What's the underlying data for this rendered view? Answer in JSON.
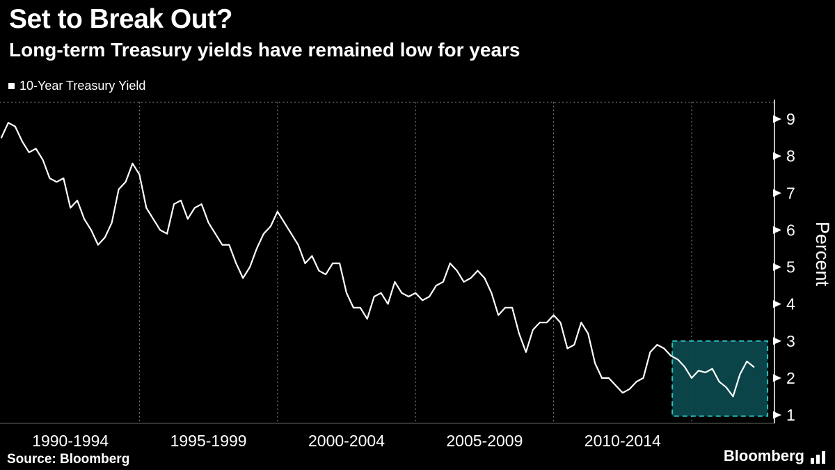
{
  "header": {
    "title": "Set to Break Out?",
    "subtitle": "Long-term Treasury yields have remained low for years"
  },
  "legend": {
    "label": "10-Year Treasury Yield",
    "marker_color": "#ffffff"
  },
  "footer": {
    "source": "Source: Bloomberg",
    "brand": "Bloomberg"
  },
  "colors": {
    "background": "#000000",
    "text": "#ffffff",
    "line": "#ffffff",
    "grid": "#909090",
    "axis": "#ffffff",
    "highlight_fill": "#0b4a4e",
    "highlight_border": "#2cc0c2"
  },
  "chart_data": {
    "type": "line",
    "title": "Set to Break Out?",
    "subtitle": "Long-term Treasury yields have remained low for years",
    "xlabel": "",
    "ylabel": "Percent",
    "xlim": [
      1990.0,
      2018.0
    ],
    "ylim": [
      1,
      9
    ],
    "yticks": [
      1,
      2,
      3,
      4,
      5,
      6,
      7,
      8,
      9
    ],
    "grid_x": [
      1995,
      2000,
      2005,
      2010,
      2015
    ],
    "xtick_labels": [
      "1990-1994",
      "1995-1999",
      "2000-2004",
      "2005-2009",
      "2010-2014"
    ],
    "xtick_centers": [
      1992.5,
      1997.5,
      2002.5,
      2007.5,
      2012.5
    ],
    "legend_position": "top-left",
    "grid": "vertical-dotted",
    "series": [
      {
        "name": "10-Year Treasury Yield",
        "color": "#ffffff",
        "x_start": 1990.0,
        "x_step": 0.25,
        "values": [
          8.5,
          8.9,
          8.8,
          8.4,
          8.1,
          8.2,
          7.9,
          7.4,
          7.3,
          7.4,
          6.6,
          6.8,
          6.3,
          6.0,
          5.6,
          5.8,
          6.2,
          7.1,
          7.3,
          7.8,
          7.5,
          6.6,
          6.3,
          6.0,
          5.9,
          6.7,
          6.8,
          6.3,
          6.6,
          6.7,
          6.2,
          5.9,
          5.6,
          5.6,
          5.1,
          4.7,
          5.0,
          5.5,
          5.9,
          6.1,
          6.5,
          6.2,
          5.9,
          5.6,
          5.1,
          5.3,
          4.9,
          4.8,
          5.1,
          5.1,
          4.3,
          3.9,
          3.9,
          3.6,
          4.2,
          4.3,
          4.0,
          4.6,
          4.3,
          4.2,
          4.3,
          4.1,
          4.2,
          4.5,
          4.6,
          5.1,
          4.9,
          4.6,
          4.7,
          4.9,
          4.7,
          4.3,
          3.7,
          3.9,
          3.9,
          3.2,
          2.7,
          3.3,
          3.5,
          3.5,
          3.7,
          3.5,
          2.8,
          2.9,
          3.5,
          3.2,
          2.4,
          2.0,
          2.0,
          1.8,
          1.6,
          1.7,
          1.9,
          2.0,
          2.7,
          2.9,
          2.8,
          2.6,
          2.5,
          2.3,
          2.0,
          2.2,
          2.15,
          2.25,
          1.9,
          1.75,
          1.5,
          2.1,
          2.45,
          2.3
        ]
      }
    ],
    "highlight_region": {
      "x0": 2014.3,
      "x1": 2017.75,
      "y0": 0.97,
      "y1": 3.0
    }
  }
}
